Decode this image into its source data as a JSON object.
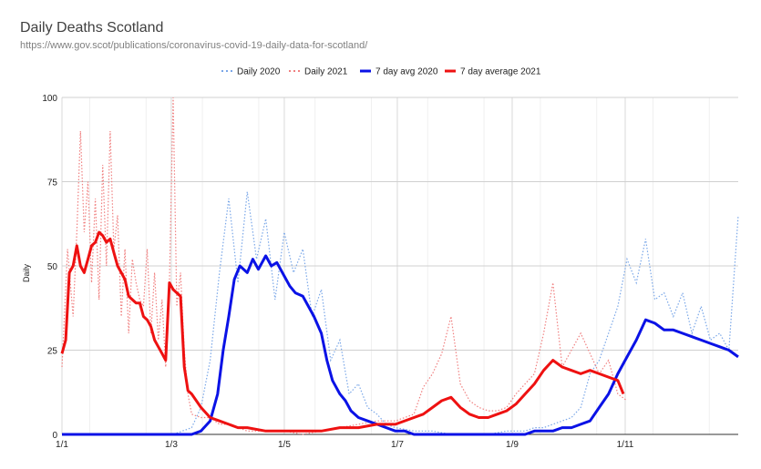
{
  "chart_data": {
    "type": "line",
    "title": "Daily Deaths Scotland",
    "subtitle": "https://www.gov.scot/publications/coronavirus-covid-19-daily-data-for-scotland/",
    "ylabel": "Daily",
    "xlabel": "",
    "ylim": [
      0,
      100
    ],
    "y_ticks": [
      0,
      25,
      50,
      75,
      100
    ],
    "x_tick_labels": [
      "1/1",
      "1/3",
      "1/5",
      "1/7",
      "1/9",
      "1/11"
    ],
    "x_tick_days": [
      0,
      59,
      120,
      181,
      243,
      304
    ],
    "x_range_days": [
      0,
      365
    ],
    "grid": true,
    "legend_position": "top",
    "colors": {
      "daily_2020": "#7aa7e8",
      "daily_2021": "#f08080",
      "avg_2020": "#0a12e6",
      "avg_2021": "#ee1111"
    },
    "series": [
      {
        "name": "Daily 2020",
        "style": "dotted",
        "x": [
          0,
          60,
          70,
          75,
          80,
          85,
          90,
          95,
          100,
          105,
          110,
          115,
          120,
          125,
          130,
          135,
          140,
          145,
          150,
          155,
          160,
          165,
          170,
          175,
          180,
          190,
          200,
          210,
          220,
          230,
          240,
          250,
          255,
          260,
          265,
          270,
          275,
          280,
          285,
          290,
          295,
          300,
          305,
          310,
          315,
          320,
          325,
          330,
          335,
          340,
          345,
          350,
          355,
          360,
          365
        ],
        "y": [
          0,
          0,
          2,
          8,
          22,
          48,
          70,
          45,
          72,
          52,
          64,
          40,
          60,
          48,
          55,
          35,
          43,
          22,
          28,
          12,
          15,
          8,
          6,
          3,
          2,
          1,
          1,
          0,
          0,
          0,
          1,
          1,
          2,
          2,
          3,
          4,
          5,
          8,
          18,
          22,
          30,
          38,
          52,
          45,
          58,
          40,
          42,
          35,
          42,
          30,
          38,
          28,
          30,
          25,
          65
        ]
      },
      {
        "name": "Daily 2021",
        "style": "dotted",
        "x": [
          0,
          3,
          6,
          8,
          10,
          12,
          14,
          16,
          18,
          20,
          22,
          24,
          26,
          28,
          30,
          32,
          34,
          36,
          38,
          40,
          42,
          44,
          46,
          48,
          50,
          52,
          54,
          56,
          58,
          60,
          62,
          64,
          66,
          68,
          70,
          75,
          80,
          85,
          90,
          95,
          100,
          110,
          120,
          130,
          140,
          150,
          160,
          170,
          180,
          190,
          195,
          200,
          205,
          210,
          215,
          220,
          225,
          230,
          235,
          240,
          245,
          250,
          255,
          260,
          265,
          270,
          275,
          280,
          285,
          290,
          295,
          300,
          305
        ],
        "y": [
          20,
          55,
          35,
          60,
          90,
          60,
          75,
          45,
          70,
          40,
          80,
          50,
          90,
          55,
          65,
          35,
          55,
          30,
          52,
          45,
          40,
          38,
          55,
          30,
          48,
          28,
          40,
          20,
          45,
          100,
          38,
          48,
          25,
          12,
          6,
          5,
          5,
          3,
          3,
          2,
          1,
          1,
          1,
          0,
          1,
          2,
          3,
          4,
          4,
          6,
          14,
          18,
          24,
          35,
          15,
          10,
          8,
          7,
          7,
          8,
          12,
          15,
          18,
          30,
          45,
          20,
          25,
          30,
          24,
          18,
          22,
          12,
          10
        ]
      },
      {
        "name": "7 day avg 2020",
        "style": "solid",
        "x": [
          0,
          70,
          75,
          80,
          84,
          87,
          90,
          93,
          96,
          100,
          103,
          106,
          110,
          113,
          116,
          120,
          123,
          126,
          130,
          133,
          136,
          140,
          143,
          146,
          150,
          153,
          156,
          160,
          165,
          170,
          175,
          180,
          185,
          190,
          200,
          210,
          220,
          230,
          240,
          250,
          255,
          260,
          265,
          270,
          275,
          280,
          285,
          290,
          295,
          300,
          305,
          310,
          315,
          320,
          325,
          330,
          335,
          340,
          345,
          350,
          355,
          360,
          365
        ],
        "y": [
          0,
          0,
          1,
          4,
          12,
          25,
          35,
          46,
          50,
          48,
          52,
          49,
          53,
          50,
          51,
          47,
          44,
          42,
          41,
          38,
          35,
          30,
          22,
          16,
          12,
          10,
          7,
          5,
          4,
          3,
          2,
          1,
          1,
          0,
          0,
          0,
          0,
          0,
          0,
          0,
          1,
          1,
          1,
          2,
          2,
          3,
          4,
          8,
          12,
          18,
          23,
          28,
          34,
          33,
          31,
          31,
          30,
          29,
          28,
          27,
          26,
          25,
          23
        ]
      },
      {
        "name": "7 day average 2021",
        "style": "solid",
        "x": [
          0,
          2,
          4,
          6,
          8,
          10,
          12,
          14,
          16,
          18,
          20,
          22,
          24,
          26,
          28,
          30,
          32,
          34,
          36,
          38,
          40,
          42,
          44,
          46,
          48,
          50,
          52,
          54,
          56,
          58,
          60,
          62,
          64,
          66,
          68,
          70,
          75,
          80,
          85,
          90,
          95,
          100,
          110,
          120,
          130,
          140,
          150,
          160,
          170,
          180,
          190,
          195,
          200,
          205,
          210,
          215,
          220,
          225,
          230,
          235,
          240,
          245,
          250,
          255,
          260,
          265,
          270,
          275,
          280,
          285,
          290,
          295,
          300,
          303
        ],
        "y": [
          24,
          28,
          48,
          50,
          56,
          50,
          48,
          52,
          56,
          57,
          60,
          59,
          57,
          58,
          54,
          50,
          48,
          46,
          41,
          40,
          39,
          39,
          35,
          34,
          32,
          28,
          26,
          24,
          22,
          45,
          43,
          42,
          41,
          20,
          13,
          12,
          8,
          5,
          4,
          3,
          2,
          2,
          1,
          1,
          1,
          1,
          2,
          2,
          3,
          3,
          5,
          6,
          8,
          10,
          11,
          8,
          6,
          5,
          5,
          6,
          7,
          9,
          12,
          15,
          19,
          22,
          20,
          19,
          18,
          19,
          18,
          17,
          16,
          12
        ]
      }
    ]
  }
}
